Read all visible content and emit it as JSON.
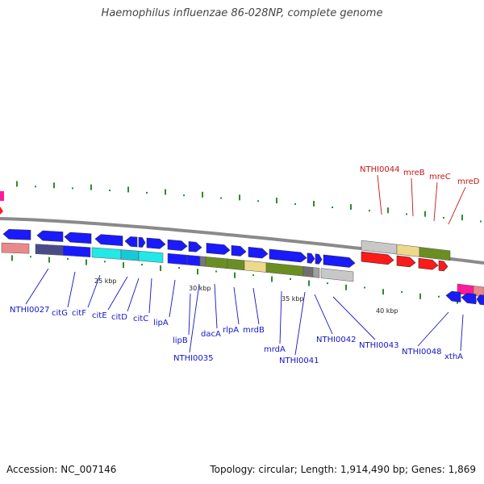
{
  "title": "Haemophilus influenzae 86-028NP, complete genome",
  "footer": {
    "accession": "Accession: NC_007146",
    "summary": "Topology: circular; Length: 1,914,490 bp; Genes: 1,869"
  },
  "colors": {
    "forward_label": "#1414c8",
    "reverse_label": "#c81414",
    "backbone": "#8a8a8a",
    "tick": "#2e8b2e",
    "forward_arrow": "#1a1aff",
    "reverse_arrow": "#ff1a1a"
  },
  "scale_labels": [
    "25 kbp",
    "30 kbp",
    "35 kbp",
    "40 kbp"
  ],
  "forward_genes": [
    {
      "label": "NTHI0027",
      "strand": "forward"
    },
    {
      "label": "citG",
      "strand": "forward"
    },
    {
      "label": "citF",
      "strand": "forward"
    },
    {
      "label": "citE",
      "strand": "forward"
    },
    {
      "label": "citD",
      "strand": "forward"
    },
    {
      "label": "citC",
      "strand": "forward"
    },
    {
      "label": "lipA",
      "strand": "forward"
    },
    {
      "label": "lipB",
      "strand": "forward"
    },
    {
      "label": "NTHI0035",
      "strand": "forward"
    },
    {
      "label": "dacA",
      "strand": "forward"
    },
    {
      "label": "rlpA",
      "strand": "forward"
    },
    {
      "label": "mrdB",
      "strand": "forward"
    },
    {
      "label": "mrdA",
      "strand": "forward"
    },
    {
      "label": "NTHI0041",
      "strand": "forward"
    },
    {
      "label": "NTHI0042",
      "strand": "forward"
    },
    {
      "label": "NTHI0043",
      "strand": "forward"
    },
    {
      "label": "NTHI0048",
      "strand": "forward"
    },
    {
      "label": "xthA",
      "strand": "forward"
    }
  ],
  "reverse_genes": [
    {
      "label": "NTHI0044",
      "strand": "reverse"
    },
    {
      "label": "mreB",
      "strand": "reverse"
    },
    {
      "label": "mreC",
      "strand": "reverse"
    },
    {
      "label": "mreD",
      "strand": "reverse"
    }
  ]
}
